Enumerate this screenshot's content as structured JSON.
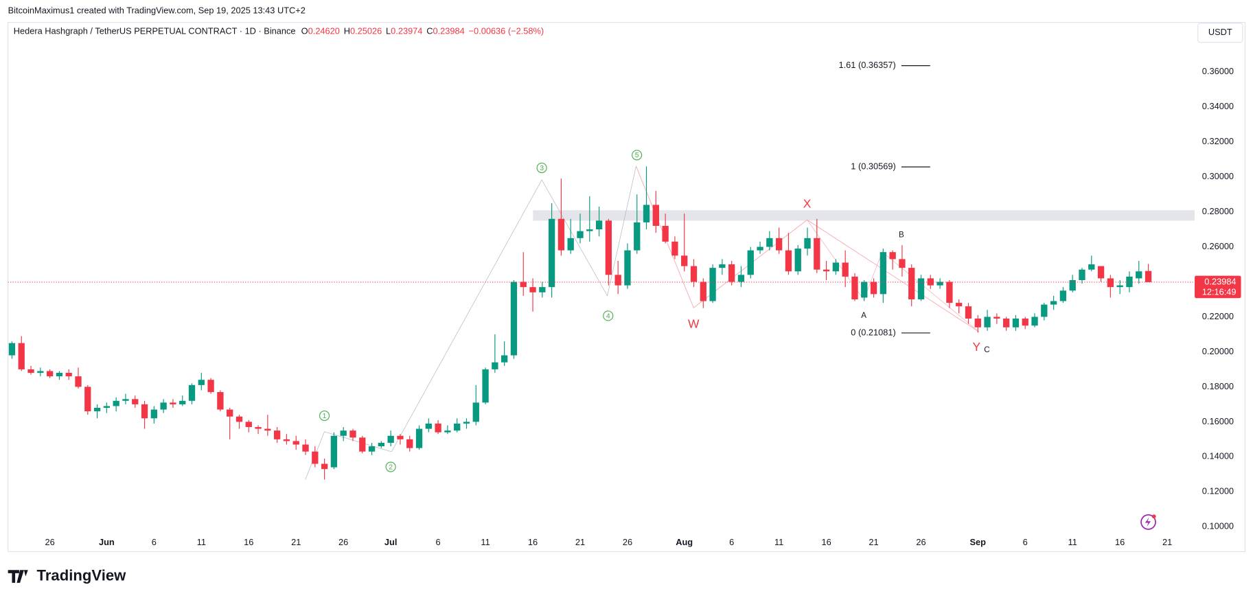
{
  "header": {
    "credit": "BitcoinMaximus1 created with TradingView.com, Sep 19, 2025 13:43 UTC+2",
    "symbol": "Hedera Hashgraph / TetherUS PERPETUAL CONTRACT · 1D · Binance",
    "legend": [
      {
        "key": "O",
        "value": "0.24620"
      },
      {
        "key": "H",
        "value": "0.25026"
      },
      {
        "key": "L",
        "value": "0.23974"
      },
      {
        "key": "C",
        "value": "0.23984"
      }
    ],
    "change": "−0.00636 (−2.58%)",
    "currency": "USDT",
    "countdown": "12:16:49",
    "brand": "TradingView"
  },
  "chart_data": {
    "type": "candlestick",
    "up_color": "#089981",
    "down_color": "#f23645",
    "categories": [
      null,
      null,
      null,
      null,
      "26",
      null,
      null,
      null,
      null,
      null,
      "Jun",
      null,
      null,
      null,
      null,
      "6",
      null,
      null,
      null,
      null,
      "11",
      null,
      null,
      null,
      null,
      "16",
      null,
      null,
      null,
      null,
      "21",
      null,
      null,
      null,
      null,
      "26",
      null,
      null,
      null,
      null,
      "Jul",
      null,
      null,
      null,
      null,
      "6",
      null,
      null,
      null,
      null,
      "11",
      null,
      null,
      null,
      null,
      "16",
      null,
      null,
      null,
      null,
      "21",
      null,
      null,
      null,
      null,
      "26",
      null,
      null,
      null,
      null,
      null,
      "Aug",
      null,
      null,
      null,
      null,
      "6",
      null,
      null,
      null,
      null,
      "11",
      null,
      null,
      null,
      null,
      "16",
      null,
      null,
      null,
      null,
      "21",
      null,
      null,
      null,
      null,
      "26",
      null,
      null,
      null,
      null,
      null,
      "Sep",
      null,
      null,
      null,
      null,
      "6",
      null,
      null,
      null,
      null,
      "11",
      null,
      null,
      null,
      null,
      "16",
      null,
      null,
      null,
      null,
      "21"
    ],
    "open": [
      0.198,
      0.205,
      0.19,
      0.188,
      0.189,
      0.186,
      0.188,
      0.186,
      0.18,
      0.166,
      0.168,
      0.169,
      0.172,
      0.173,
      0.17,
      0.162,
      0.167,
      0.171,
      0.17,
      0.172,
      0.181,
      0.184,
      0.177,
      0.167,
      0.163,
      0.16,
      0.157,
      0.156,
      0.155,
      0.15,
      0.149,
      0.147,
      0.143,
      0.136,
      0.134,
      0.152,
      0.155,
      0.151,
      0.143,
      0.146,
      0.148,
      0.152,
      0.15,
      0.145,
      0.156,
      0.159,
      0.154,
      0.155,
      0.159,
      0.16,
      0.171,
      0.19,
      0.194,
      0.198,
      0.24,
      0.237,
      0.234,
      0.237,
      0.276,
      0.258,
      0.265,
      0.269,
      0.27,
      0.275,
      0.244,
      0.238,
      0.258,
      0.274,
      0.284,
      0.272,
      0.263,
      0.255,
      0.249,
      0.24,
      0.229,
      0.248,
      0.25,
      0.24,
      0.244,
      0.258,
      0.26,
      0.265,
      0.258,
      0.246,
      0.259,
      0.265,
      0.247,
      0.246,
      0.251,
      0.243,
      0.231,
      0.24,
      0.233,
      0.257,
      0.253,
      0.248,
      0.23,
      0.242,
      0.238,
      0.24,
      0.228,
      0.226,
      0.219,
      0.214,
      0.22,
      0.219,
      0.214,
      0.219,
      0.215,
      0.22,
      0.227,
      0.229,
      0.235,
      0.241,
      0.247,
      0.249,
      0.242,
      0.237,
      0.237,
      0.242,
      0.2462,
      null,
      null
    ],
    "high": [
      0.206,
      0.209,
      0.192,
      0.191,
      0.19,
      0.189,
      0.19,
      0.191,
      0.181,
      0.17,
      0.171,
      0.174,
      0.176,
      0.175,
      0.172,
      0.169,
      0.173,
      0.173,
      0.175,
      0.182,
      0.188,
      0.185,
      0.178,
      0.168,
      0.164,
      0.161,
      0.158,
      0.164,
      0.157,
      0.153,
      0.152,
      0.15,
      0.146,
      0.139,
      0.154,
      0.157,
      0.156,
      0.152,
      0.148,
      0.149,
      0.155,
      0.153,
      0.152,
      0.158,
      0.162,
      0.161,
      0.158,
      0.162,
      0.162,
      0.181,
      0.191,
      0.21,
      0.206,
      0.241,
      0.257,
      0.242,
      0.24,
      0.285,
      0.299,
      0.276,
      0.279,
      0.289,
      0.283,
      0.276,
      0.252,
      0.262,
      0.29,
      0.306,
      0.292,
      0.279,
      0.266,
      0.279,
      0.253,
      0.242,
      0.25,
      0.253,
      0.252,
      0.249,
      0.26,
      0.263,
      0.269,
      0.271,
      0.268,
      0.261,
      0.271,
      0.276,
      0.252,
      0.253,
      0.258,
      0.245,
      0.241,
      0.242,
      0.259,
      0.258,
      0.261,
      0.25,
      0.244,
      0.244,
      0.242,
      0.241,
      0.23,
      0.228,
      0.221,
      0.224,
      0.222,
      0.22,
      0.221,
      0.22,
      0.222,
      0.228,
      0.232,
      0.237,
      0.244,
      0.248,
      0.255,
      0.249,
      0.244,
      0.241,
      0.246,
      0.252,
      0.25026,
      null,
      null
    ],
    "low": [
      0.196,
      0.189,
      0.187,
      0.186,
      0.185,
      0.184,
      0.184,
      0.179,
      0.164,
      0.162,
      0.165,
      0.166,
      0.17,
      0.168,
      0.156,
      0.159,
      0.165,
      0.168,
      0.169,
      0.17,
      0.178,
      0.176,
      0.166,
      0.15,
      0.156,
      0.154,
      0.153,
      0.152,
      0.148,
      0.147,
      0.144,
      0.141,
      0.134,
      0.127,
      0.133,
      0.149,
      0.149,
      0.142,
      0.141,
      0.145,
      0.146,
      0.147,
      0.143,
      0.144,
      0.154,
      0.153,
      0.153,
      0.154,
      0.156,
      0.158,
      0.17,
      0.188,
      0.192,
      0.196,
      0.232,
      0.223,
      0.231,
      0.231,
      0.255,
      0.256,
      0.262,
      0.263,
      0.266,
      0.238,
      0.233,
      0.236,
      0.256,
      0.27,
      0.268,
      0.262,
      0.253,
      0.246,
      0.237,
      0.225,
      0.228,
      0.244,
      0.238,
      0.237,
      0.242,
      0.256,
      0.258,
      0.256,
      0.244,
      0.244,
      0.255,
      0.245,
      0.241,
      0.244,
      0.237,
      0.229,
      0.229,
      0.231,
      0.228,
      0.247,
      0.243,
      0.226,
      0.229,
      0.236,
      0.236,
      0.225,
      0.222,
      0.216,
      0.211,
      0.212,
      0.216,
      0.212,
      0.212,
      0.213,
      0.214,
      0.218,
      0.224,
      0.228,
      0.234,
      0.239,
      0.246,
      0.24,
      0.231,
      0.233,
      0.234,
      0.239,
      0.23974,
      null,
      null
    ],
    "close": [
      0.205,
      0.19,
      0.188,
      0.189,
      0.186,
      0.188,
      0.186,
      0.18,
      0.166,
      0.168,
      0.169,
      0.172,
      0.173,
      0.17,
      0.162,
      0.167,
      0.171,
      0.17,
      0.172,
      0.181,
      0.184,
      0.177,
      0.167,
      0.163,
      0.16,
      0.157,
      0.156,
      0.155,
      0.15,
      0.149,
      0.147,
      0.143,
      0.136,
      0.133,
      0.152,
      0.155,
      0.151,
      0.143,
      0.146,
      0.148,
      0.152,
      0.15,
      0.145,
      0.156,
      0.159,
      0.154,
      0.155,
      0.159,
      0.16,
      0.171,
      0.19,
      0.194,
      0.198,
      0.24,
      0.237,
      0.234,
      0.237,
      0.276,
      0.258,
      0.265,
      0.269,
      0.27,
      0.275,
      0.244,
      0.238,
      0.258,
      0.274,
      0.284,
      0.272,
      0.263,
      0.255,
      0.249,
      0.24,
      0.229,
      0.248,
      0.25,
      0.24,
      0.244,
      0.258,
      0.26,
      0.265,
      0.258,
      0.246,
      0.259,
      0.265,
      0.247,
      0.246,
      0.251,
      0.243,
      0.23,
      0.24,
      0.233,
      0.257,
      0.253,
      0.248,
      0.23,
      0.242,
      0.238,
      0.24,
      0.228,
      0.226,
      0.219,
      0.214,
      0.22,
      0.219,
      0.214,
      0.219,
      0.215,
      0.22,
      0.227,
      0.229,
      0.235,
      0.241,
      0.247,
      0.25,
      0.242,
      0.237,
      0.238,
      0.243,
      0.246,
      0.23984,
      null,
      null
    ],
    "ylim": [
      0.0858,
      0.3883
    ],
    "yticks": [
      {
        "value": 0.1,
        "label": "0.10000"
      },
      {
        "value": 0.12,
        "label": "0.12000"
      },
      {
        "value": 0.14,
        "label": "0.14000"
      },
      {
        "value": 0.16,
        "label": "0.16000"
      },
      {
        "value": 0.18,
        "label": "0.18000"
      },
      {
        "value": 0.2,
        "label": "0.20000"
      },
      {
        "value": 0.22,
        "label": "0.22000"
      },
      {
        "value": 0.24,
        "label": "0.24000"
      },
      {
        "value": 0.26,
        "label": "0.26000"
      },
      {
        "value": 0.28,
        "label": "0.28000"
      },
      {
        "value": 0.3,
        "label": "0.30000"
      },
      {
        "value": 0.32,
        "label": "0.32000"
      },
      {
        "value": 0.34,
        "label": "0.34000"
      },
      {
        "value": 0.36,
        "label": "0.36000"
      }
    ],
    "fib_levels": [
      {
        "value": 0.36357,
        "label": "1.61 (0.36357)"
      },
      {
        "value": 0.30569,
        "label": "1 (0.30569)"
      },
      {
        "value": 0.21081,
        "label": "0 (0.21081)"
      }
    ],
    "wave_labels": [
      "1",
      "2",
      "3",
      "4",
      "5"
    ],
    "pattern_labels": [
      "W",
      "X",
      "Y"
    ],
    "correction_labels": [
      "A",
      "B",
      "C"
    ]
  }
}
